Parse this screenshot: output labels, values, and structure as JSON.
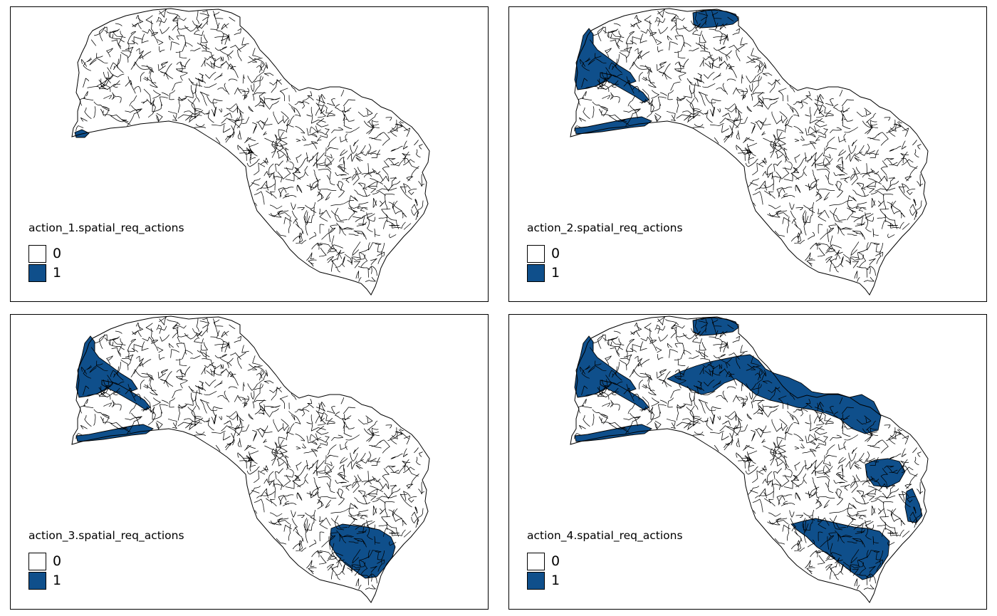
{
  "colors": {
    "unselected": "#ffffff",
    "selected": "#0f4f8b",
    "outline": "#000000"
  },
  "panels": [
    {
      "title": "action_1.spatial_req_actions",
      "legend": [
        {
          "label": "0",
          "color": "#ffffff"
        },
        {
          "label": "1",
          "color": "#0f4f8b"
        }
      ],
      "selected_areas": [
        "far-west-tip"
      ]
    },
    {
      "title": "action_2.spatial_req_actions",
      "legend": [
        {
          "label": "0",
          "color": "#ffffff"
        },
        {
          "label": "1",
          "color": "#0f4f8b"
        }
      ],
      "selected_areas": [
        "north-headwater",
        "west-basin",
        "west-channel",
        "south-west-strip"
      ]
    },
    {
      "title": "action_3.spatial_req_actions",
      "legend": [
        {
          "label": "0",
          "color": "#ffffff"
        },
        {
          "label": "1",
          "color": "#0f4f8b"
        }
      ],
      "selected_areas": [
        "west-basin",
        "west-channel",
        "south-west-strip",
        "south-east-basin"
      ]
    },
    {
      "title": "action_4.spatial_req_actions",
      "legend": [
        {
          "label": "0",
          "color": "#ffffff"
        },
        {
          "label": "1",
          "color": "#0f4f8b"
        }
      ],
      "selected_areas": [
        "north-headwater",
        "west-basin",
        "west-channel",
        "south-west-strip",
        "central-corridor",
        "east-patch",
        "east-edge",
        "south-east-band"
      ]
    }
  ]
}
